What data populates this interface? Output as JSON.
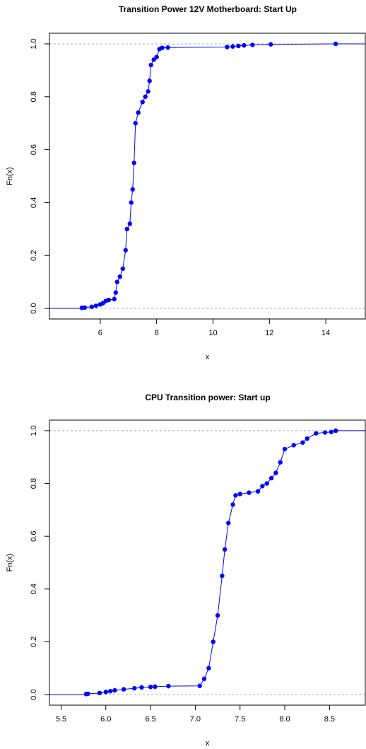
{
  "chart_data": [
    {
      "type": "ecdf",
      "title": "Transition Power 12V Motherboard: Start Up",
      "x_label": "x",
      "y_label": "Fn(x)",
      "color": "#0000ff",
      "x": [
        5.35,
        5.45,
        5.7,
        5.85,
        6.0,
        6.1,
        6.2,
        6.3,
        6.5,
        6.55,
        6.6,
        6.7,
        6.8,
        6.9,
        6.95,
        7.05,
        7.1,
        7.15,
        7.2,
        7.25,
        7.35,
        7.5,
        7.6,
        7.7,
        7.75,
        7.8,
        7.9,
        8.0,
        8.1,
        8.2,
        8.4,
        10.5,
        10.7,
        10.9,
        11.1,
        11.4,
        12.05,
        14.35
      ],
      "values": [
        0.002,
        0.003,
        0.006,
        0.01,
        0.015,
        0.02,
        0.028,
        0.032,
        0.035,
        0.06,
        0.1,
        0.12,
        0.15,
        0.22,
        0.3,
        0.32,
        0.4,
        0.45,
        0.55,
        0.7,
        0.74,
        0.78,
        0.8,
        0.82,
        0.86,
        0.92,
        0.94,
        0.95,
        0.98,
        0.985,
        0.986,
        0.988,
        0.99,
        0.992,
        0.994,
        0.996,
        0.998,
        1.0
      ],
      "xlim": [
        4.2,
        15.4
      ],
      "ylim": [
        -0.04,
        1.04
      ],
      "xticks": [
        6,
        8,
        10,
        12,
        14
      ],
      "yticks": [
        {
          "value": 0,
          "label": "0.0"
        },
        0.2,
        0.4,
        0.6,
        0.8,
        {
          "value": 1,
          "label": "1.0"
        }
      ],
      "hlines": [
        0,
        1
      ]
    },
    {
      "type": "ecdf",
      "title": "CPU Transition power: Start up",
      "x_label": "x",
      "y_label": "Fn(x)",
      "color": "#0000ff",
      "x": [
        5.78,
        5.8,
        5.93,
        6.0,
        6.05,
        6.1,
        6.2,
        6.32,
        6.4,
        6.5,
        6.55,
        6.7,
        7.05,
        7.1,
        7.15,
        7.2,
        7.25,
        7.3,
        7.33,
        7.37,
        7.42,
        7.45,
        7.5,
        7.6,
        7.7,
        7.75,
        7.8,
        7.85,
        7.9,
        7.95,
        8.0,
        8.1,
        8.2,
        8.25,
        8.35,
        8.45,
        8.52,
        8.57
      ],
      "values": [
        0.002,
        0.003,
        0.006,
        0.01,
        0.013,
        0.016,
        0.02,
        0.024,
        0.027,
        0.029,
        0.03,
        0.032,
        0.033,
        0.06,
        0.1,
        0.2,
        0.3,
        0.45,
        0.55,
        0.65,
        0.72,
        0.755,
        0.76,
        0.765,
        0.77,
        0.79,
        0.8,
        0.82,
        0.84,
        0.88,
        0.93,
        0.945,
        0.955,
        0.97,
        0.99,
        0.993,
        0.995,
        1.0
      ],
      "xlim": [
        5.37,
        8.9
      ],
      "ylim": [
        -0.04,
        1.04
      ],
      "xticks": [
        5.5,
        {
          "value": 6,
          "label": "6.0"
        },
        6.5,
        {
          "value": 7,
          "label": "7.0"
        },
        7.5,
        {
          "value": 8,
          "label": "8.0"
        },
        8.5
      ],
      "yticks": [
        {
          "value": 0,
          "label": "0.0"
        },
        0.2,
        0.4,
        0.6,
        0.8,
        {
          "value": 1,
          "label": "1.0"
        }
      ],
      "hlines": [
        0,
        1
      ]
    }
  ]
}
